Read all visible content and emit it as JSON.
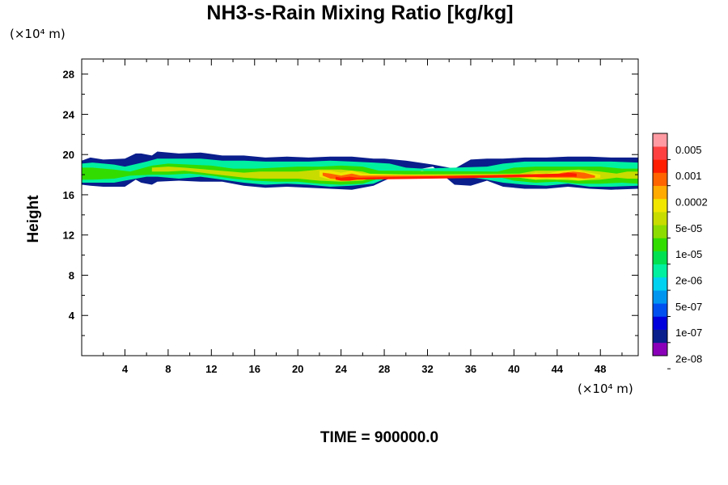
{
  "chart_data": {
    "type": "heatmap",
    "title": "NH3-s-Rain Mixing Ratio [kg/kg]",
    "ylabel": "Height",
    "xlabel": "",
    "x_unit": "(×10⁴ m)",
    "y_unit": "(×10⁴ m)",
    "footer": "TIME = 900000.0",
    "xlim": [
      0,
      51.5
    ],
    "ylim": [
      0,
      29.5
    ],
    "x_ticks": [
      4,
      8,
      12,
      16,
      20,
      24,
      28,
      32,
      36,
      40,
      44,
      48
    ],
    "y_ticks": [
      4,
      8,
      12,
      16,
      20,
      24,
      28
    ],
    "colorbar": {
      "labels": [
        "0.005",
        "0.001",
        "0.0002",
        "5e-05",
        "1e-05",
        "2e-06",
        "5e-07",
        "1e-07",
        "2e-08"
      ],
      "colors": [
        "#8a00b8",
        "#0a1e8c",
        "#0000dc",
        "#0050f0",
        "#0096f0",
        "#00d2f0",
        "#00f0a0",
        "#00e050",
        "#32dc00",
        "#8cdc00",
        "#c8dc00",
        "#f0e600",
        "#ffaa00",
        "#ff6400",
        "#ff1e00",
        "#ff4040",
        "#ff9aa2"
      ]
    },
    "bands": [
      {
        "level": 1,
        "name": "violet",
        "x": [
          0.0,
          0.8,
          2.0,
          4.0,
          5.0,
          5.5,
          6.5,
          7.0,
          9.0,
          11.0,
          13.0,
          15.0,
          17.0,
          19.0,
          21.0,
          23.0,
          25.0,
          27.0,
          28.0,
          30.0,
          32.5,
          34.5,
          36.0,
          37.5,
          39.0,
          41.0,
          43.0,
          45.0,
          47.0,
          49.0,
          51.5
        ],
        "top": [
          19.4,
          19.7,
          19.5,
          19.6,
          20.1,
          20.1,
          19.9,
          20.3,
          20.1,
          20.2,
          19.9,
          19.9,
          19.7,
          19.8,
          19.7,
          19.8,
          19.8,
          19.6,
          19.6,
          19.4,
          19.0,
          18.6,
          19.5,
          19.6,
          19.6,
          19.7,
          19.7,
          19.8,
          19.8,
          19.7,
          19.7
        ],
        "bot": [
          17.0,
          16.9,
          16.8,
          16.8,
          17.5,
          17.2,
          17.0,
          17.3,
          17.4,
          17.3,
          17.3,
          16.9,
          16.7,
          16.8,
          16.7,
          16.6,
          16.5,
          16.9,
          17.4,
          18.3,
          18.8,
          17.0,
          16.9,
          17.4,
          16.8,
          16.6,
          16.6,
          16.8,
          16.6,
          16.5,
          16.6
        ]
      },
      {
        "level": 6,
        "name": "cyan",
        "x": [
          0.0,
          1.0,
          3.0,
          4.0,
          6.0,
          7.0,
          9.0,
          11.0,
          13.0,
          15.0,
          17.0,
          19.0,
          21.0,
          23.0,
          25.0,
          27.0,
          28.5,
          30.0,
          31.5,
          37.5,
          39.0,
          41.0,
          43.0,
          45.0,
          47.0,
          49.0,
          51.5
        ],
        "top": [
          19.1,
          19.2,
          19.0,
          18.8,
          19.3,
          19.6,
          19.6,
          19.6,
          19.4,
          19.4,
          19.3,
          19.3,
          19.3,
          19.4,
          19.3,
          19.2,
          19.1,
          18.7,
          18.6,
          18.8,
          19.1,
          19.3,
          19.3,
          19.3,
          19.3,
          19.3,
          19.2
        ],
        "bot": [
          17.2,
          17.2,
          17.2,
          17.4,
          17.8,
          17.8,
          17.6,
          17.8,
          17.5,
          17.2,
          17.0,
          17.1,
          17.0,
          16.8,
          16.9,
          17.1,
          17.8,
          18.2,
          18.4,
          17.5,
          17.2,
          17.0,
          16.9,
          17.1,
          16.8,
          16.8,
          16.9
        ]
      },
      {
        "level": 8,
        "name": "green",
        "x": [
          0.0,
          1.0,
          3.0,
          4.5,
          6.5,
          8.0,
          10.0,
          12.0,
          14.0,
          16.0,
          18.0,
          20.0,
          22.0,
          24.0,
          26.0,
          27.5,
          38.5,
          40.0,
          42.0,
          44.0,
          46.0,
          48.0,
          50.0,
          51.5
        ],
        "top": [
          18.7,
          18.7,
          18.5,
          18.3,
          18.9,
          19.1,
          19.0,
          18.9,
          18.6,
          18.6,
          18.7,
          18.8,
          18.8,
          18.9,
          18.8,
          18.4,
          18.3,
          18.7,
          18.8,
          18.8,
          18.8,
          18.8,
          18.6,
          18.6
        ],
        "bot": [
          17.5,
          17.5,
          17.6,
          17.9,
          18.0,
          18.0,
          18.1,
          17.9,
          17.6,
          17.4,
          17.3,
          17.3,
          17.1,
          17.0,
          17.1,
          17.6,
          17.8,
          17.4,
          17.2,
          17.3,
          17.1,
          17.1,
          17.2,
          17.1
        ]
      },
      {
        "level": 10,
        "name": "yellow-green",
        "x": [
          6.5,
          8.0,
          9.5,
          15.0,
          16.5,
          18.0,
          20.0,
          22.0,
          24.0,
          26.0,
          27.0,
          40.5,
          42.0,
          44.0,
          46.0,
          48.0,
          49.5,
          50.5,
          51.5
        ],
        "top": [
          18.7,
          18.8,
          18.7,
          18.2,
          18.3,
          18.3,
          18.3,
          18.5,
          18.5,
          18.3,
          18.0,
          18.1,
          18.4,
          18.4,
          18.5,
          18.3,
          18.1,
          18.3,
          18.3
        ],
        "bot": [
          18.3,
          18.3,
          18.4,
          17.7,
          17.6,
          17.6,
          17.6,
          17.4,
          17.3,
          17.4,
          17.7,
          17.7,
          17.5,
          17.5,
          17.4,
          17.5,
          17.7,
          17.6,
          17.6
        ]
      },
      {
        "level": 11,
        "name": "yellow",
        "x": [
          22.0,
          23.0,
          24.0,
          25.0,
          26.0,
          40.5,
          42.0,
          43.0,
          44.0,
          45.0,
          46.0,
          47.0,
          48.0
        ],
        "top": [
          18.4,
          18.4,
          18.2,
          18.4,
          18.1,
          17.8,
          18.2,
          18.1,
          18.3,
          18.4,
          18.4,
          18.2,
          18.0
        ],
        "bot": [
          17.8,
          17.5,
          17.4,
          17.4,
          17.7,
          17.7,
          17.5,
          17.6,
          17.5,
          17.6,
          17.4,
          17.6,
          17.7
        ]
      },
      {
        "level": 13,
        "name": "orange",
        "x": [
          22.3,
          23.0,
          24.0,
          25.0,
          25.8,
          41.5,
          42.5,
          43.5,
          44.5,
          45.5,
          46.5,
          47.5
        ],
        "top": [
          18.2,
          18.1,
          17.9,
          18.1,
          17.9,
          17.9,
          18.0,
          17.9,
          18.2,
          18.3,
          18.2,
          17.9
        ],
        "bot": [
          17.9,
          17.6,
          17.5,
          17.5,
          17.7,
          17.8,
          17.7,
          17.7,
          17.7,
          17.7,
          17.6,
          17.7
        ]
      },
      {
        "level": 14,
        "name": "dark-orange",
        "x": [
          23.5,
          24.0,
          24.8,
          25.5,
          44.5,
          45.0,
          45.8
        ],
        "top": [
          17.8,
          17.7,
          17.8,
          17.7,
          18.1,
          18.2,
          18.1
        ],
        "bot": [
          17.5,
          17.4,
          17.4,
          17.5,
          17.8,
          17.8,
          17.8
        ]
      }
    ]
  }
}
